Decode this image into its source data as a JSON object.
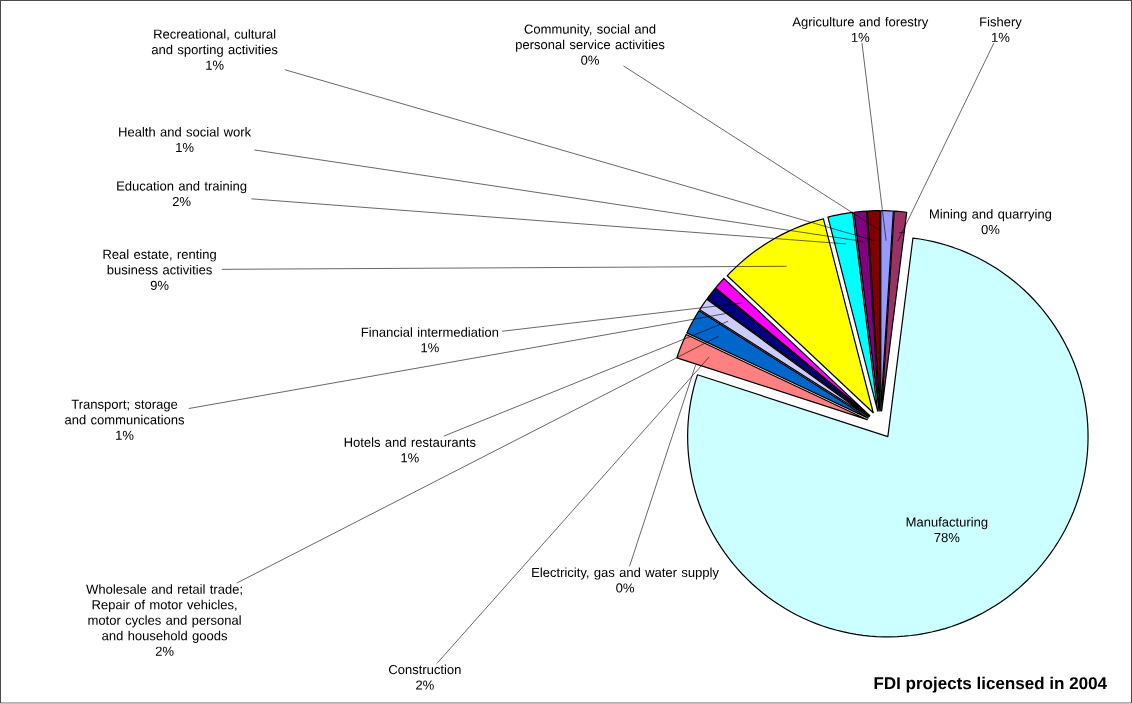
{
  "chart_data": {
    "type": "pie",
    "title": "FDI projects licensed in 2004",
    "categories": [
      "Agriculture and forestry",
      "Fishery",
      "Mining and quarrying",
      "Manufacturing",
      "Electricity, gas and water supply",
      "Construction",
      "Wholesale and retail trade; Repair of motor vehicles, motor cycles and personal and household goods",
      "Hotels and restaurants",
      "Transport; storage and communications",
      "Financial intermediation",
      "Real estate, renting business activities",
      "Education and training",
      "Health and social work",
      "Recreational, cultural and sporting activities",
      "Community, social and personal service activities"
    ],
    "values": [
      1,
      1,
      0,
      78,
      0,
      2,
      2,
      1,
      1,
      1,
      9,
      2,
      1,
      1,
      0
    ],
    "value_labels": [
      "1%",
      "1%",
      "0%",
      "78%",
      "0%",
      "2%",
      "2%",
      "1%",
      "1%",
      "1%",
      "9%",
      "2%",
      "1%",
      "1%",
      "0%"
    ],
    "colors": [
      "#9999ff",
      "#993366",
      "#ffffcc",
      "#ccffff",
      "#660066",
      "#ff8080",
      "#0066cc",
      "#ccccff",
      "#000080",
      "#ff00ff",
      "#ffff00",
      "#00ffff",
      "#800080",
      "#800000",
      "#0000ff"
    ]
  }
}
